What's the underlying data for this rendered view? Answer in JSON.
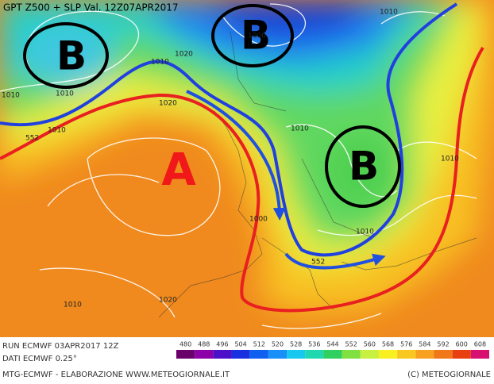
{
  "header": {
    "title": "GPT Z500 + SLP Val. 12Z07APR2017"
  },
  "map": {
    "systems": [
      "B",
      "B",
      "A",
      "B"
    ],
    "contour_labels": [
      "1010",
      "1000",
      "1010",
      "1010",
      "552",
      "1020",
      "1020",
      "1010",
      "1010",
      "1010",
      "1000",
      "1010",
      "552",
      "1010",
      "1010",
      "1020",
      "1010"
    ]
  },
  "run_info": [
    "RUN ECMWF 03APR2017 12Z",
    "DATI ECMWF 0.25°"
  ],
  "colorbar": {
    "ticks": [
      480,
      488,
      496,
      504,
      512,
      520,
      528,
      536,
      544,
      552,
      560,
      568,
      576,
      584,
      592,
      600,
      608
    ],
    "colors": [
      "#6a006a",
      "#8c00a8",
      "#4b10c8",
      "#1830e0",
      "#1060f0",
      "#1890f8",
      "#18c8f0",
      "#20d8b0",
      "#30d060",
      "#80e040",
      "#c8f040",
      "#f8f020",
      "#f8c820",
      "#f8a020",
      "#f07818",
      "#e84010",
      "#d81070"
    ]
  },
  "footer": {
    "left": "MTG-ECMWF - ELABORAZIONE WWW.METEOGIORNALE.IT",
    "right": "(C) METEOGIORNALE"
  }
}
